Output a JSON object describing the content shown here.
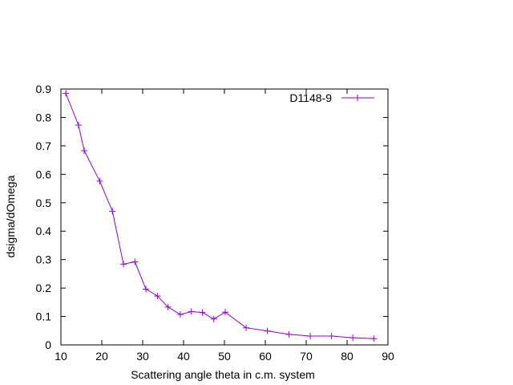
{
  "chart_data": {
    "type": "line",
    "title": "",
    "xlabel": "Scattering angle theta in c.m. system",
    "ylabel": "dsigma/dOmega",
    "xlim": [
      10,
      90
    ],
    "ylim": [
      0,
      0.9
    ],
    "xticks": [
      10,
      20,
      30,
      40,
      50,
      60,
      70,
      80,
      90
    ],
    "yticks": [
      0,
      0.1,
      0.2,
      0.3,
      0.4,
      0.5,
      0.6,
      0.7,
      0.8,
      0.9
    ],
    "xtick_labels": [
      "10",
      "20",
      "30",
      "40",
      "50",
      "60",
      "70",
      "80",
      "90"
    ],
    "ytick_labels": [
      "0",
      "0.1",
      "0.2",
      "0.3",
      "0.4",
      "0.5",
      "0.6",
      "0.7",
      "0.8",
      "0.9"
    ],
    "grid": false,
    "legend_position": "top-right",
    "series": [
      {
        "name": "D1148-9",
        "color": "#9400d3",
        "marker": "plus",
        "x": [
          11.2,
          14.3,
          15.7,
          19.5,
          22.6,
          25.3,
          28.1,
          30.8,
          33.6,
          36.2,
          39.2,
          41.9,
          44.6,
          47.4,
          50.2,
          55.3,
          60.5,
          65.8,
          71.0,
          76.2,
          81.4,
          86.6
        ],
        "y": [
          0.885,
          0.773,
          0.683,
          0.576,
          0.47,
          0.284,
          0.292,
          0.196,
          0.172,
          0.133,
          0.107,
          0.117,
          0.114,
          0.091,
          0.115,
          0.06,
          0.049,
          0.037,
          0.031,
          0.031,
          0.025,
          0.022
        ]
      }
    ]
  }
}
